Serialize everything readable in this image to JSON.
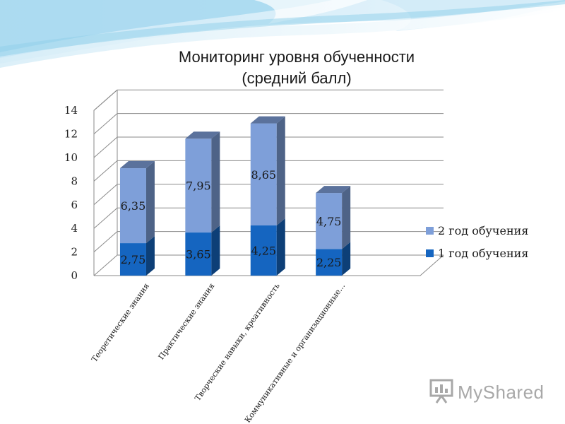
{
  "chart_data": {
    "type": "bar",
    "stacked": true,
    "title_line1": "Мониторинг уровня обученности",
    "title_line2": "(средний балл)",
    "categories": [
      "Теоретические знания",
      "Практические знания",
      "Творческие навыки, креативность",
      "Коммуникативные и организационные..."
    ],
    "series": [
      {
        "name": "1 год обучения",
        "values": [
          2.75,
          3.65,
          4.25,
          2.25
        ],
        "labels": [
          "2,75",
          "3,65",
          "4,25",
          "2,25"
        ],
        "color": "#1565c0"
      },
      {
        "name": "2 год обучения",
        "values": [
          6.35,
          7.95,
          8.65,
          4.75
        ],
        "labels": [
          "6,35",
          "7,95",
          "8,65",
          "4,75"
        ],
        "color": "#7e9fd9"
      }
    ],
    "ylim": [
      0,
      14
    ],
    "yticks": [
      0,
      2,
      4,
      6,
      8,
      10,
      12,
      14
    ],
    "gridlines": true,
    "legend_position": "right"
  },
  "watermark": {
    "text": "MyShared",
    "icon": "presentation-board-icon"
  }
}
